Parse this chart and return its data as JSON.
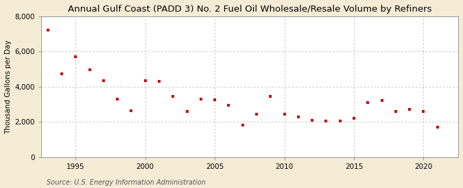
{
  "title": "Annual Gulf Coast (PADD 3) No. 2 Fuel Oil Wholesale/Resale Volume by Refiners",
  "ylabel": "Thousand Gallons per Day",
  "source": "Source: U.S. Energy Information Administration",
  "background_color": "#f5ecd5",
  "plot_bg_color": "#ffffff",
  "marker_color": "#cc0000",
  "years": [
    1993,
    1994,
    1995,
    1996,
    1997,
    1998,
    1999,
    2000,
    2001,
    2002,
    2003,
    2004,
    2005,
    2006,
    2007,
    2008,
    2009,
    2010,
    2011,
    2012,
    2013,
    2014,
    2015,
    2016,
    2017,
    2018,
    2019,
    2020,
    2021
  ],
  "values": [
    7200,
    4750,
    5700,
    4950,
    4350,
    3300,
    2650,
    4350,
    4300,
    3450,
    2600,
    3300,
    3250,
    2950,
    1800,
    2450,
    3450,
    2450,
    2300,
    2100,
    2050,
    2050,
    2200,
    3100,
    3200,
    2600,
    2700,
    2600,
    1700
  ],
  "xlim": [
    1992.5,
    2022.5
  ],
  "ylim": [
    0,
    8000
  ],
  "yticks": [
    0,
    2000,
    4000,
    6000,
    8000
  ],
  "xticks": [
    1995,
    2000,
    2005,
    2010,
    2015,
    2020
  ],
  "grid_color": "#bbbbbb",
  "title_fontsize": 9.5,
  "label_fontsize": 7.5,
  "tick_fontsize": 7.5,
  "source_fontsize": 7
}
